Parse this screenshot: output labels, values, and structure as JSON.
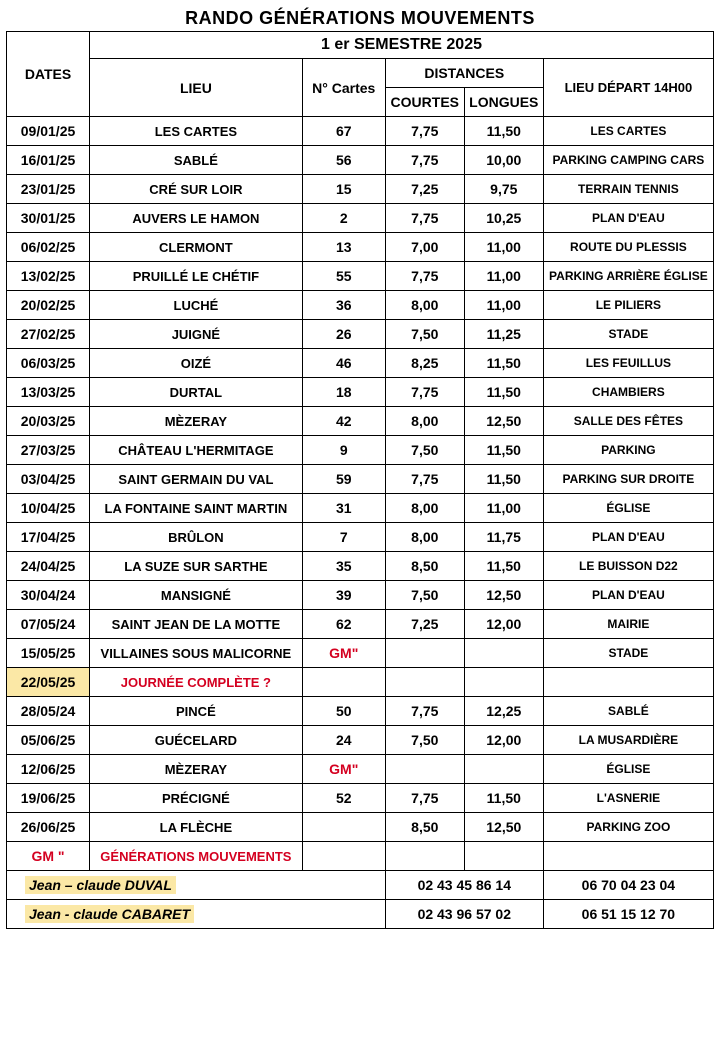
{
  "title": "RANDO GÉNÉRATIONS MOUVEMENTS",
  "semester": "1 er SEMESTRE 2025",
  "headers": {
    "dates": "DATES",
    "lieu": "LIEU",
    "cartes": "N° Cartes",
    "distances": "DISTANCES",
    "courtes": "COURTES",
    "longues": "LONGUES",
    "depart": "LIEU DÉPART 14H00"
  },
  "rows": [
    {
      "date": "09/01/25",
      "lieu": "LES CARTES",
      "cartes": "67",
      "c": "7,75",
      "l": "11,50",
      "dep": "LES CARTES"
    },
    {
      "date": "16/01/25",
      "lieu": "SABLÉ",
      "cartes": "56",
      "c": "7,75",
      "l": "10,00",
      "dep": "PARKING CAMPING CARS"
    },
    {
      "date": "23/01/25",
      "lieu": "CRÉ SUR LOIR",
      "cartes": "15",
      "c": "7,25",
      "l": "9,75",
      "dep": "TERRAIN TENNIS"
    },
    {
      "date": "30/01/25",
      "lieu": "AUVERS LE HAMON",
      "cartes": "2",
      "c": "7,75",
      "l": "10,25",
      "dep": "PLAN D'EAU"
    },
    {
      "date": "06/02/25",
      "lieu": "CLERMONT",
      "cartes": "13",
      "c": "7,00",
      "l": "11,00",
      "dep": "ROUTE DU PLESSIS"
    },
    {
      "date": "13/02/25",
      "lieu": "PRUILLÉ LE CHÉTIF",
      "cartes": "55",
      "c": "7,75",
      "l": "11,00",
      "dep": "PARKING ARRIÈRE ÉGLISE"
    },
    {
      "date": "20/02/25",
      "lieu": "LUCHÉ",
      "cartes": "36",
      "c": "8,00",
      "l": "11,00",
      "dep": "LE PILIERS"
    },
    {
      "date": "27/02/25",
      "lieu": "JUIGNÉ",
      "cartes": "26",
      "c": "7,50",
      "l": "11,25",
      "dep": "STADE"
    },
    {
      "date": "06/03/25",
      "lieu": "OIZÉ",
      "cartes": "46",
      "c": "8,25",
      "l": "11,50",
      "dep": "LES FEUILLUS"
    },
    {
      "date": "13/03/25",
      "lieu": "DURTAL",
      "cartes": "18",
      "c": "7,75",
      "l": "11,50",
      "dep": "CHAMBIERS"
    },
    {
      "date": "20/03/25",
      "lieu": "MÈZERAY",
      "cartes": "42",
      "c": "8,00",
      "l": "12,50",
      "dep": "SALLE DES FÊTES"
    },
    {
      "date": "27/03/25",
      "lieu": "CHÂTEAU L'HERMITAGE",
      "cartes": "9",
      "c": "7,50",
      "l": "11,50",
      "dep": "PARKING"
    },
    {
      "date": "03/04/25",
      "lieu": "SAINT GERMAIN DU VAL",
      "cartes": "59",
      "c": "7,75",
      "l": "11,50",
      "dep": "PARKING SUR DROITE"
    },
    {
      "date": "10/04/25",
      "lieu": "LA FONTAINE SAINT MARTIN",
      "cartes": "31",
      "c": "8,00",
      "l": "11,00",
      "dep": "ÉGLISE"
    },
    {
      "date": "17/04/25",
      "lieu": "BRÛLON",
      "cartes": "7",
      "c": "8,00",
      "l": "11,75",
      "dep": "PLAN D'EAU"
    },
    {
      "date": "24/04/25",
      "lieu": "LA SUZE SUR SARTHE",
      "cartes": "35",
      "c": "8,50",
      "l": "11,50",
      "dep": "LE BUISSON D22"
    },
    {
      "date": "30/04/24",
      "lieu": "MANSIGNÉ",
      "cartes": "39",
      "c": "7,50",
      "l": "12,50",
      "dep": "PLAN D'EAU"
    },
    {
      "date": "07/05/24",
      "lieu": "SAINT JEAN DE LA MOTTE",
      "cartes": "62",
      "c": "7,25",
      "l": "12,00",
      "dep": "MAIRIE"
    },
    {
      "date": "15/05/25",
      "lieu": "VILLAINES SOUS MALICORNE",
      "cartes": "GM\"",
      "c": "",
      "l": "",
      "dep": "STADE",
      "gm": true
    },
    {
      "date": "22/05/25",
      "lieu": "JOURNÉE COMPLÈTE ?",
      "cartes": "",
      "c": "",
      "l": "",
      "dep": "",
      "highlight": true,
      "red": true
    },
    {
      "date": "28/05/24",
      "lieu": "PINCÉ",
      "cartes": "50",
      "c": "7,75",
      "l": "12,25",
      "dep": "SABLÉ"
    },
    {
      "date": "05/06/25",
      "lieu": "GUÉCELARD",
      "cartes": "24",
      "c": "7,50",
      "l": "12,00",
      "dep": "LA MUSARDIÈRE"
    },
    {
      "date": "12/06/25",
      "lieu": "MÈZERAY",
      "cartes": "GM\"",
      "c": "",
      "l": "",
      "dep": "ÉGLISE",
      "gm": true
    },
    {
      "date": "19/06/25",
      "lieu": "PRÉCIGNÉ",
      "cartes": "52",
      "c": "7,75",
      "l": "11,50",
      "dep": "L'ASNERIE"
    },
    {
      "date": "26/06/25",
      "lieu": "LA FLÈCHE",
      "cartes": "",
      "c": "8,50",
      "l": "12,50",
      "dep": "PARKING ZOO"
    }
  ],
  "legend": {
    "code": "GM \"",
    "text": "GÉNÉRATIONS MOUVEMENTS"
  },
  "contacts": [
    {
      "name": "Jean – claude DUVAL",
      "tel1": "02 43 45 86 14",
      "tel2": "06 70 04 23 04"
    },
    {
      "name": "Jean - claude CABARET",
      "tel1": "02 43 96 57 02",
      "tel2": "06 51 15 12 70"
    }
  ],
  "colors": {
    "border": "#000000",
    "text": "#000000",
    "accent": "#d40020",
    "highlight": "#fbe8a6",
    "background": "#ffffff"
  },
  "typography": {
    "title_fontsize": 18,
    "header_fontsize": 14,
    "cell_fontsize": 14,
    "depart_fontsize": 12,
    "font_family": "Arial"
  }
}
